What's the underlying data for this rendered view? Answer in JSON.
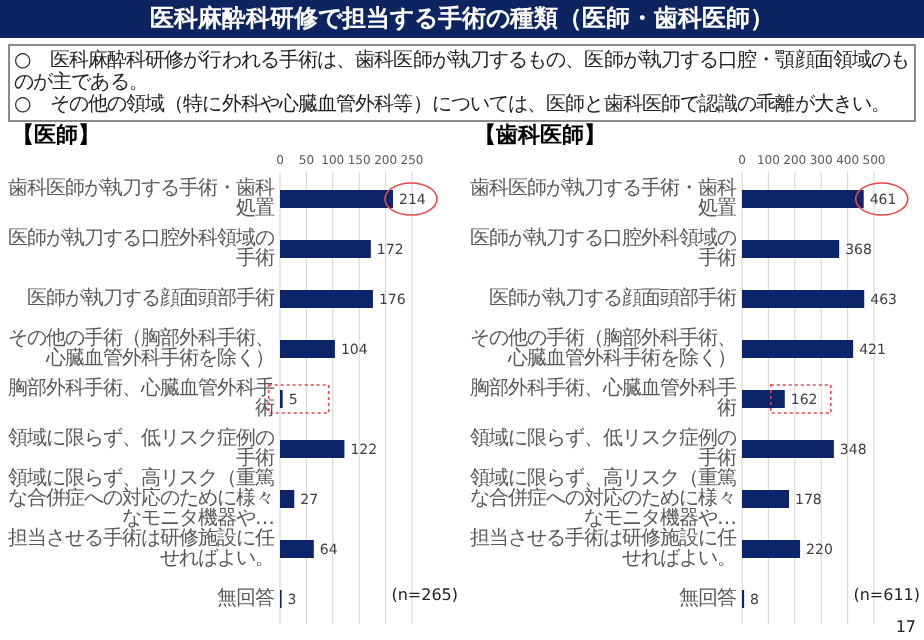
{
  "chart_data": [
    {
      "type": "bar",
      "orientation": "horizontal",
      "title": "【医師】",
      "categories": [
        "歯科医師が執刀する手術・歯科処置",
        "医師が執刀する口腔外科領域の手術",
        "医師が執刀する顔面頭部手術",
        "その他の手術（胸部外科手術、心臓血管外科手術を除く）",
        "胸部外科手術、心臓血管外科手術",
        "領域に限らず、低リスク症例の手術",
        "領域に限らず、高リスク（重篤な合併症への対応のために様々なモニタ機器や…",
        "担当させる手術は研修施設に任せればよい。",
        "無回答"
      ],
      "values": [
        214,
        172,
        176,
        104,
        5,
        122,
        27,
        64,
        3
      ],
      "color": "#0b2568",
      "xlim": [
        0,
        250
      ],
      "xticks": [
        0,
        50,
        100,
        150,
        200,
        250
      ],
      "grid": "x",
      "data_labels": true,
      "legend": false,
      "annotations": [
        "医科麻酔科研修で担当する手術の種類（医師・歯科医師）",
        "○　医科麻酔科研修が行われる手術は、歯科医師が執刀するもの、医師が執刀する口腔・顎顔面領域のものが主である。",
        "○　その他の領域（特に外科や心臓血管外科等）については、医師と歯科医師で認識の乖離が大きい。",
        "(n=265)"
      ]
    },
    {
      "type": "bar",
      "orientation": "horizontal",
      "title": "【歯科医師】",
      "categories": [
        "歯科医師が執刀する手術・歯科処置",
        "医師が執刀する口腔外科領域の手術",
        "医師が執刀する顔面頭部手術",
        "その他の手術（胸部外科手術、心臓血管外科手術を除く）",
        "胸部外科手術、心臓血管外科手術",
        "領域に限らず、低リスク症例の手術",
        "領域に限らず、高リスク（重篤な合併症への対応のために様々なモニタ機器や…",
        "担当させる手術は研修施設に任せればよい。",
        "無回答"
      ],
      "values": [
        461,
        368,
        463,
        421,
        162,
        348,
        178,
        220,
        8
      ],
      "color": "#0b2568",
      "xlim": [
        0,
        500
      ],
      "xticks": [
        0,
        100,
        200,
        300,
        400,
        500
      ],
      "grid": "x",
      "data_labels": true,
      "legend": false,
      "annotations": [
        "(n=611)",
        "17"
      ]
    }
  ]
}
